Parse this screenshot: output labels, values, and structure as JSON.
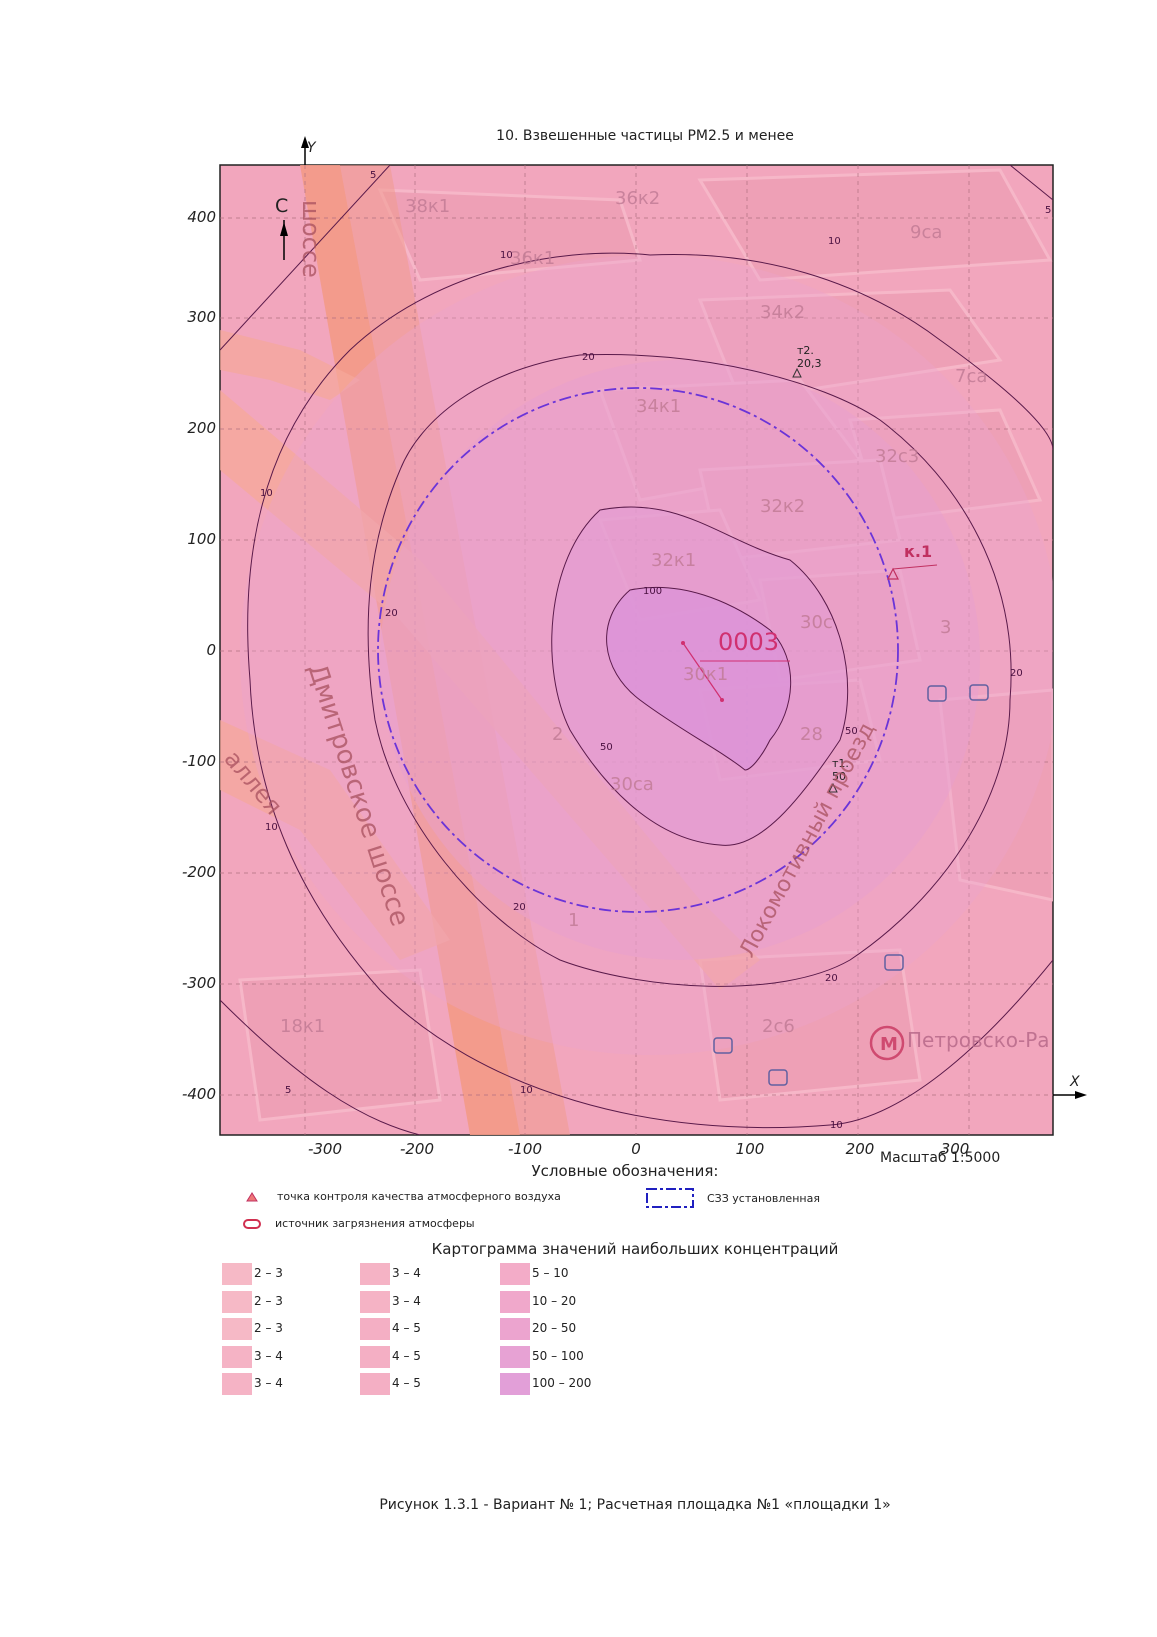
{
  "title": "10. Взвешенные частицы PM2.5 и менее",
  "axes": {
    "x_label": "X",
    "y_label": "Y",
    "x_ticks": [
      "-300",
      "-200",
      "-100",
      "0",
      "100",
      "200",
      "300"
    ],
    "y_ticks": [
      "400",
      "300",
      "200",
      "100",
      "0",
      "-100",
      "-200",
      "-300",
      "-400"
    ],
    "x_range": [
      -375,
      375
    ],
    "y_range": [
      -435,
      440
    ]
  },
  "north": "С",
  "source": {
    "label": "0003"
  },
  "points": [
    {
      "label": "к.1",
      "x": 228,
      "y": 70
    },
    {
      "label": "т2.",
      "value": "20,3",
      "x": 143,
      "y": 253
    },
    {
      "label": "т1.",
      "value": "50",
      "x": 175,
      "y": -120
    }
  ],
  "isolines": [
    "5",
    "10",
    "20",
    "50",
    "100"
  ],
  "streets": [
    "Дмитровское шоссе",
    "Локомотивный проезд",
    "аллея",
    "шоссе"
  ],
  "buildings": [
    "38к1",
    "36к2",
    "9са",
    "36к1",
    "34к2",
    "7са",
    "34к1",
    "32с3",
    "32к2",
    "32к1",
    "30с",
    "3",
    "30к1",
    "28",
    "2",
    "30са",
    "1",
    "2с6",
    "18к1"
  ],
  "metro": "Петровско-Ра",
  "scale": "Масштаб 1:5000",
  "legend": {
    "title": "Условные обозначения:",
    "control_point": "точка контроля качества атмосферного воздуха",
    "source": "источник загрязнения атмосферы",
    "szz": "СЗЗ установленная"
  },
  "cartogram": {
    "title": "Картограмма значений наибольших концентраций",
    "columns": [
      [
        {
          "label": "2 – 3",
          "color": "#f6b9c6"
        },
        {
          "label": "2 – 3",
          "color": "#f6b9c6"
        },
        {
          "label": "2 – 3",
          "color": "#f6b9c6"
        },
        {
          "label": "3 – 4",
          "color": "#f5b3c5"
        },
        {
          "label": "3 – 4",
          "color": "#f5b3c5"
        }
      ],
      [
        {
          "label": "3 – 4",
          "color": "#f5b3c5"
        },
        {
          "label": "3 – 4",
          "color": "#f5b3c5"
        },
        {
          "label": "4 – 5",
          "color": "#f4afc4"
        },
        {
          "label": "4 – 5",
          "color": "#f4afc4"
        },
        {
          "label": "4 – 5",
          "color": "#f4afc4"
        }
      ],
      [
        {
          "label": "5 – 10",
          "color": "#f3acc8"
        },
        {
          "label": "10 – 20",
          "color": "#f0a8cb"
        },
        {
          "label": "20 – 50",
          "color": "#eca4cf"
        },
        {
          "label": "50 – 100",
          "color": "#e7a2d4"
        },
        {
          "label": "100 – 200",
          "color": "#e29fd8"
        }
      ]
    ]
  },
  "caption": "Рисунок 1.3.1 - Вариант № 1; Расчетная площадка №1 «площадки 1»"
}
